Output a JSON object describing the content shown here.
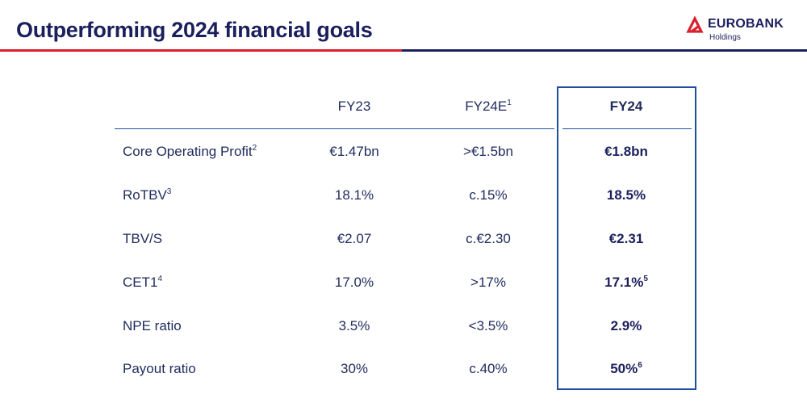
{
  "header": {
    "title": "Outperforming 2024 financial goals",
    "logo_name": "EUROBANK",
    "logo_sub": "Holdings"
  },
  "colors": {
    "navy": "#1b1f5c",
    "accent_red": "#d9202c",
    "box_blue": "#1f4f9a"
  },
  "table": {
    "columns": [
      {
        "label": "FY23",
        "sup": ""
      },
      {
        "label": "FY24E",
        "sup": "1"
      },
      {
        "label": "FY24",
        "sup": ""
      }
    ],
    "rows": [
      {
        "label": "Core Operating Profit",
        "sup": "2",
        "fy23": "€1.47bn",
        "fy24e": ">€1.5bn",
        "fy24": "€1.8bn",
        "fy24_sup": ""
      },
      {
        "label": "RoTBV",
        "sup": "3",
        "fy23": "18.1%",
        "fy24e": "c.15%",
        "fy24": "18.5%",
        "fy24_sup": ""
      },
      {
        "label": "TBV/S",
        "sup": "",
        "fy23": "€2.07",
        "fy24e": "c.€2.30",
        "fy24": "€2.31",
        "fy24_sup": ""
      },
      {
        "label": "CET1",
        "sup": "4",
        "fy23": "17.0%",
        "fy24e": ">17%",
        "fy24": "17.1%",
        "fy24_sup": "5"
      },
      {
        "label": "NPE ratio",
        "sup": "",
        "fy23": "3.5%",
        "fy24e": "<3.5%",
        "fy24": "2.9%",
        "fy24_sup": ""
      },
      {
        "label": "Payout ratio",
        "sup": "",
        "fy23": "30%",
        "fy24e": "c.40%",
        "fy24": "50%",
        "fy24_sup": "6"
      }
    ]
  }
}
